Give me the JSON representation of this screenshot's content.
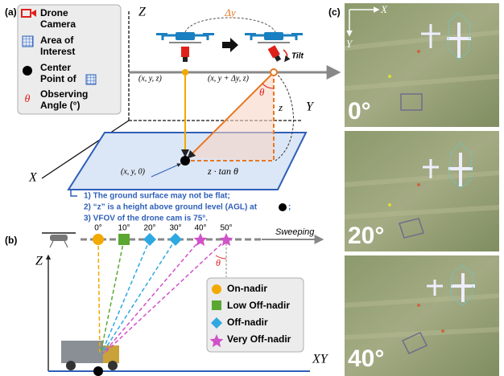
{
  "panel_a": {
    "label": "(a)",
    "legend": [
      {
        "lines": [
          "Drone",
          "Camera"
        ]
      },
      {
        "lines": [
          "Area of",
          "Interest"
        ]
      },
      {
        "lines": [
          "Center",
          "Point of"
        ]
      },
      {
        "symbol": "θ",
        "lines": [
          "Observing",
          "Angle (°)"
        ]
      }
    ],
    "axes": {
      "z": "Z",
      "y": "Y",
      "x": "X"
    },
    "delta_y": "Δy",
    "tilt": "Tilt",
    "point_1": "(x, y, z)",
    "point_2": "(x, y + Δy, z)",
    "theta": "θ",
    "height": "z",
    "ground_point": "(x, y, 0)",
    "offset": "z · tan θ",
    "notes": [
      {
        "text": "1)   The ground surface may not be flat;"
      },
      {
        "text": "2)   “z” is a height above ground level (AGL) at",
        "after": ";"
      },
      {
        "text": "3)   VFOV of the drone cam is 75°."
      }
    ]
  },
  "panel_b": {
    "label": "(b)",
    "angles": [
      "0°",
      "10°",
      "20°",
      "30°",
      "40°",
      "50°"
    ],
    "sweeping": "Sweeping",
    "axes": {
      "z": "Z",
      "xy": "XY"
    },
    "theta": "θ",
    "legend": [
      "On-nadir",
      "Low Off-nadir",
      "Off-nadir",
      "Very Off-nadir"
    ]
  },
  "panel_c": {
    "label": "(c)",
    "axes": {
      "x": "X",
      "y": "Y"
    },
    "images": [
      "0°",
      "20°",
      "40°"
    ]
  }
}
